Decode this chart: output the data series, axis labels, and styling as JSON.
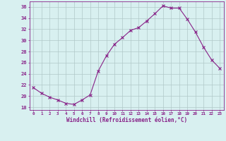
{
  "x": [
    0,
    1,
    2,
    3,
    4,
    5,
    6,
    7,
    8,
    9,
    10,
    11,
    12,
    13,
    14,
    15,
    16,
    17,
    18,
    19,
    20,
    21,
    22,
    23
  ],
  "y": [
    21.5,
    20.5,
    19.8,
    19.3,
    18.7,
    18.5,
    19.3,
    20.2,
    24.5,
    27.2,
    29.3,
    30.5,
    31.8,
    32.3,
    33.5,
    34.8,
    36.2,
    35.8,
    35.8,
    33.8,
    31.5,
    28.8,
    26.5,
    25.0
  ],
  "line_color": "#882288",
  "marker": "x",
  "bg_color": "#d8f0f0",
  "grid_color": "#b0c8c8",
  "xlabel": "Windchill (Refroidissement éolien,°C)",
  "ylabel_ticks": [
    18,
    20,
    22,
    24,
    26,
    28,
    30,
    32,
    34,
    36
  ],
  "ylim": [
    17.5,
    37.0
  ],
  "xlim": [
    -0.5,
    23.5
  ],
  "tick_color": "#882288",
  "label_color": "#882288",
  "axis_color": "#882288",
  "figsize": [
    3.2,
    2.0
  ],
  "dpi": 100
}
